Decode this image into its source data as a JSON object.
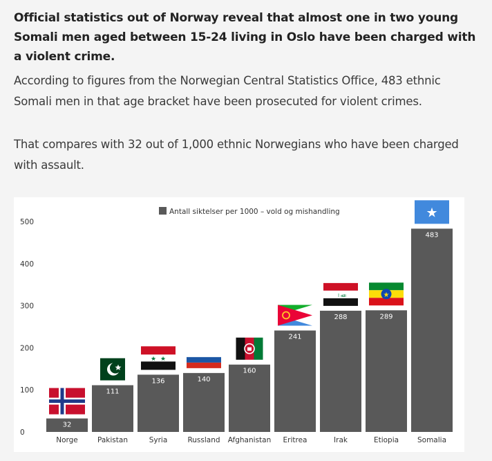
{
  "article": {
    "lead": "Official statistics out of Norway reveal that almost one in two young Somali men aged between 15-24 living in Oslo have been charged with a violent crime.",
    "paragraph1": "According to figures from the Norwegian Central Statistics Office, 483 ethnic Somali men in that age bracket have been prosecuted for violent crimes.",
    "paragraph2": "That compares with 32 out of 1,000 ethnic Norwegians who have been charged with assault."
  },
  "colors": {
    "bar": "#595959",
    "text": "#333333",
    "background": "#f4f4f4"
  },
  "chart_data": {
    "type": "bar",
    "title": "",
    "xlabel": "",
    "ylabel": "",
    "categories": [
      "Norge",
      "Pakistan",
      "Syria",
      "Russland",
      "Afghanistan",
      "Eritrea",
      "Irak",
      "Etiopia",
      "Somalia"
    ],
    "series": [
      {
        "name": "Antall siktelser per 1000 – vold og mishandling",
        "values": [
          32,
          111,
          136,
          140,
          160,
          241,
          288,
          289,
          483
        ]
      }
    ],
    "ylim": [
      0,
      500
    ],
    "yticks": [
      0,
      100,
      200,
      300,
      400,
      500
    ],
    "grid": false,
    "legend": "top-center",
    "flags": [
      "norway-flag-icon",
      "pakistan-flag-icon",
      "syria-flag-icon",
      "russia-flag-icon",
      "afghanistan-flag-icon",
      "eritrea-flag-icon",
      "iraq-flag-icon",
      "ethiopia-flag-icon",
      "somalia-flag-icon"
    ]
  }
}
